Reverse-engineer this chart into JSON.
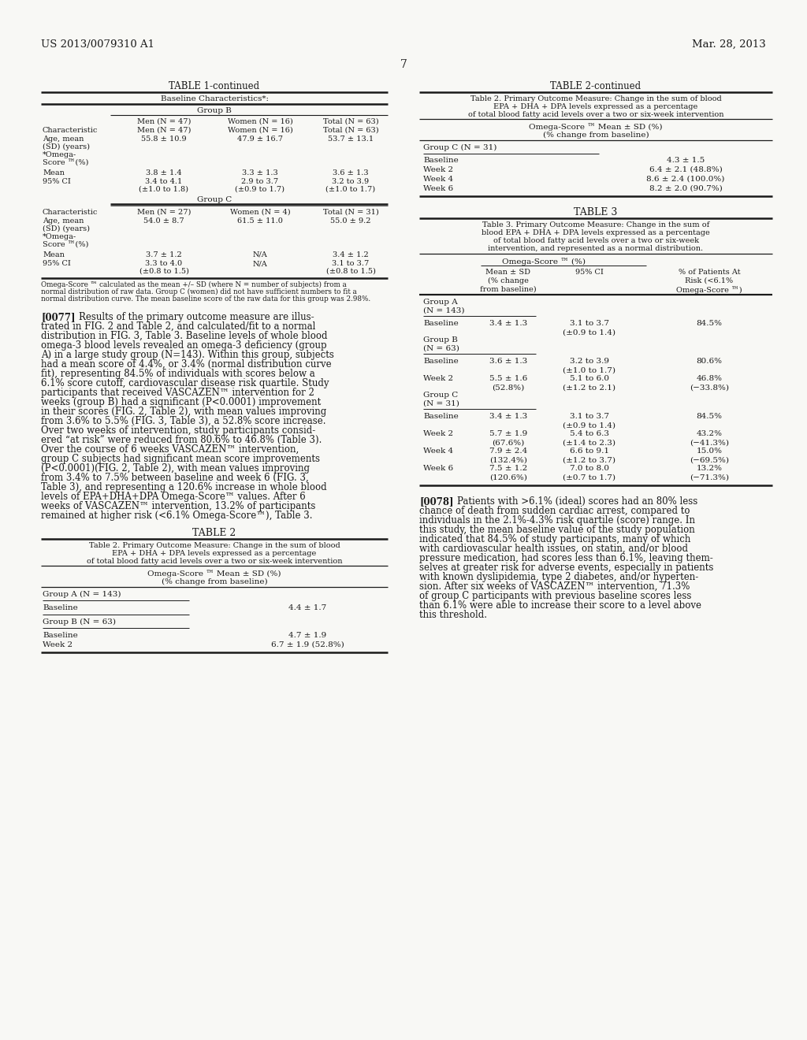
{
  "bg_color": "#f8f8f4",
  "text_color": "#1a1a1a",
  "header_left": "US 2013/0079310 A1",
  "header_right": "Mar. 28, 2013",
  "page_number": "7"
}
